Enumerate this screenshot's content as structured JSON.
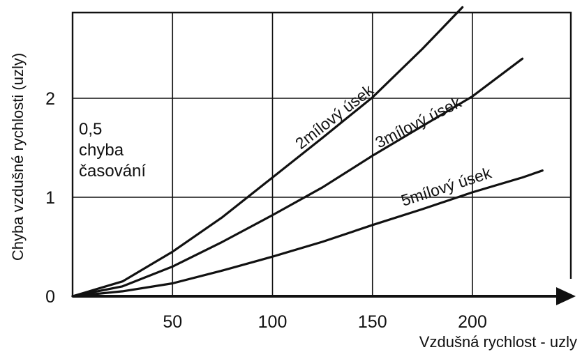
{
  "chart_data": {
    "type": "line",
    "title": "",
    "xlabel": "Vzdušná rychlost - uzly",
    "ylabel": "Chyba vzdušné rychlosti (uzly)",
    "xlim": [
      0,
      225
    ],
    "ylim": [
      0,
      2.95
    ],
    "x_ticks": [
      50,
      100,
      150,
      200
    ],
    "x_tick_labels": [
      "50",
      "100",
      "150",
      "200"
    ],
    "y_ticks": [
      0,
      1,
      2
    ],
    "y_tick_labels": [
      "0",
      "1",
      "2"
    ],
    "grid": true,
    "annotation": {
      "lines": [
        "0,5",
        "chyba",
        "časování"
      ]
    },
    "series": [
      {
        "name": "2mílový úsek",
        "points": [
          [
            0,
            0
          ],
          [
            25,
            0.15
          ],
          [
            50,
            0.45
          ],
          [
            75,
            0.8
          ],
          [
            100,
            1.2
          ],
          [
            125,
            1.6
          ],
          [
            150,
            2.01
          ],
          [
            175,
            2.5
          ],
          [
            195,
            2.92
          ]
        ]
      },
      {
        "name": "3mílový úsek",
        "points": [
          [
            0,
            0
          ],
          [
            25,
            0.1
          ],
          [
            50,
            0.3
          ],
          [
            75,
            0.55
          ],
          [
            100,
            0.82
          ],
          [
            125,
            1.1
          ],
          [
            150,
            1.42
          ],
          [
            175,
            1.72
          ],
          [
            200,
            2.02
          ],
          [
            225,
            2.4
          ]
        ]
      },
      {
        "name": "5mílový úsek",
        "points": [
          [
            0,
            0
          ],
          [
            25,
            0.05
          ],
          [
            50,
            0.13
          ],
          [
            75,
            0.26
          ],
          [
            100,
            0.4
          ],
          [
            125,
            0.55
          ],
          [
            150,
            0.72
          ],
          [
            175,
            0.88
          ],
          [
            200,
            1.05
          ],
          [
            225,
            1.2
          ],
          [
            235,
            1.27
          ]
        ]
      }
    ]
  }
}
